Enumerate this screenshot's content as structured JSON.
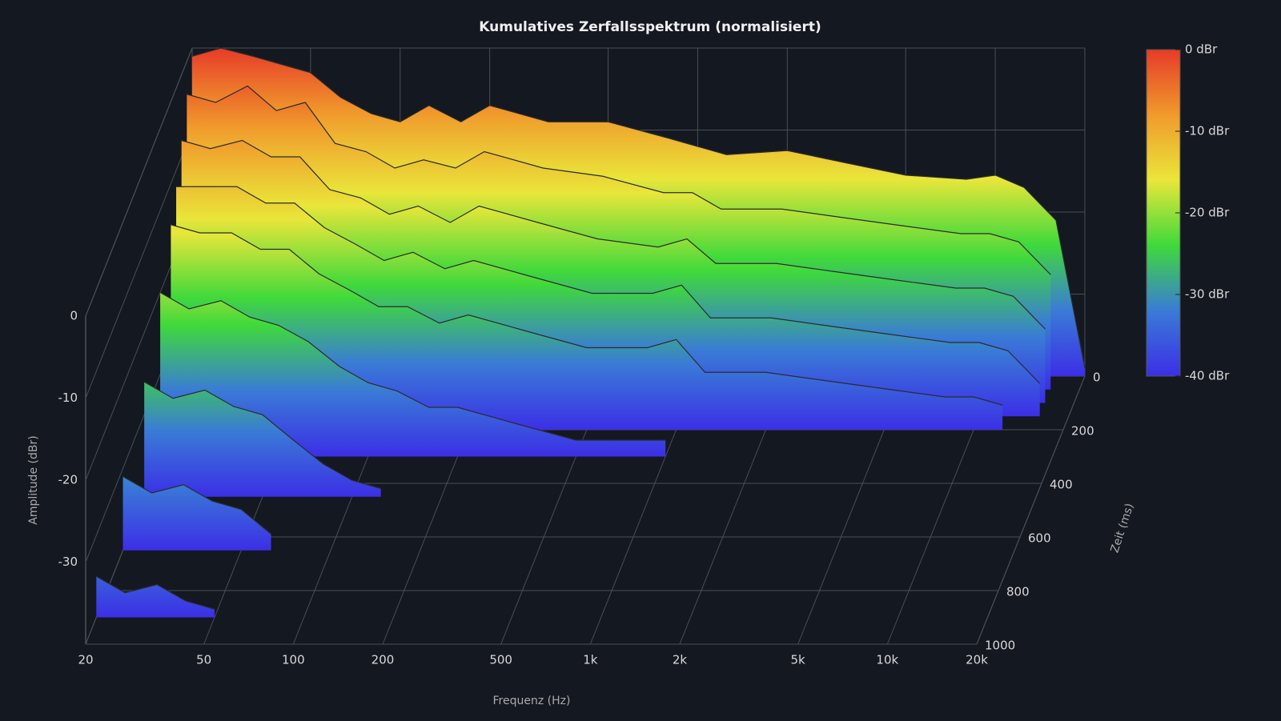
{
  "chart_data": {
    "type": "waterfall",
    "title": "Kumulatives Zerfallsspektrum (normalisiert)",
    "x_label": "Frequenz (Hz)",
    "y_label": "Amplitude (dBr)",
    "z_label": "Zeit (ms)",
    "log_x": true,
    "xlim": [
      20,
      20000
    ],
    "xticks": [
      20,
      50,
      100,
      200,
      500,
      {
        "value": 1000,
        "label": "1k"
      },
      {
        "value": 2000,
        "label": "2k"
      },
      {
        "value": 5000,
        "label": "5k"
      },
      {
        "value": 10000,
        "label": "10k"
      },
      {
        "value": 20000,
        "label": "20k"
      }
    ],
    "ylim": [
      -40,
      0
    ],
    "yticks": [
      0,
      -10,
      -20,
      -30
    ],
    "tlim": [
      0,
      1000
    ],
    "tticks": [
      0,
      200,
      400,
      600,
      800,
      1000
    ],
    "colormap": [
      "#e63b28",
      "#f09a2c",
      "#e9e63a",
      "#3fd93b",
      "#3a7bd6",
      "#3b2fe6"
    ],
    "colorbar_ticks": [
      {
        "value": 0,
        "label": "0 dBr"
      },
      {
        "value": -10,
        "label": "-10 dBr"
      },
      {
        "value": -20,
        "label": "-20 dBr"
      },
      {
        "value": -30,
        "label": "-30 dBr"
      },
      {
        "value": -40,
        "label": "-40 dBr"
      }
    ],
    "x": [
      20,
      25,
      32,
      40,
      50,
      63,
      80,
      100,
      125,
      160,
      200,
      315,
      500,
      800,
      1000,
      1250,
      2000,
      3150,
      5000,
      8000,
      10000,
      12500,
      16000,
      20000
    ],
    "times": [
      0,
      50,
      100,
      150,
      200,
      300,
      450,
      650,
      900
    ],
    "z": [
      [
        -1,
        0,
        -1,
        -2,
        -3,
        -6,
        -8,
        -9,
        -7,
        -9,
        -7,
        -9,
        -9,
        -11,
        -12,
        -13,
        -12.5,
        -14,
        -15.5,
        -16,
        -15.5,
        -17,
        -21,
        -39
      ],
      [
        -4,
        -5,
        -3,
        -6,
        -5,
        -10,
        -11,
        -13,
        -12,
        -13,
        -11,
        -13,
        -14,
        -16,
        -16,
        -18,
        -18,
        -19,
        -20,
        -21,
        -21,
        -22,
        -26,
        null
      ],
      [
        -8,
        -9,
        -8,
        -10,
        -10,
        -14,
        -15,
        -17,
        -16,
        -18,
        -16,
        -18,
        -20,
        -21,
        -20,
        -23,
        -23,
        -24,
        -25,
        -26,
        -26,
        -27,
        -31,
        null
      ],
      [
        -12,
        -12,
        -12,
        -14,
        -14,
        -17,
        -19,
        -21,
        -20,
        -22,
        -21,
        -23,
        -25,
        -25,
        -24,
        -28,
        -28,
        -29,
        -30,
        -31,
        -31,
        -32,
        -36,
        null
      ],
      [
        -15,
        -16,
        -16,
        -18,
        -18,
        -21,
        -23,
        -25,
        -25,
        -27,
        -26,
        -28,
        -30,
        -30,
        -29,
        -33,
        -33,
        -34,
        -35,
        -36,
        -36,
        -37,
        null,
        null
      ],
      [
        -20,
        -22,
        -21,
        -23,
        -24,
        -26,
        -29,
        -31,
        -32,
        -34,
        -34,
        -36,
        -38,
        -38,
        -38,
        null,
        null,
        null,
        null,
        null,
        null,
        null,
        null,
        null
      ],
      [
        -26,
        -28,
        -27,
        -29,
        -30,
        -33,
        -36,
        -38,
        -39,
        null,
        null,
        null,
        null,
        null,
        null,
        null,
        null,
        null,
        null,
        null,
        null,
        null,
        null,
        null
      ],
      [
        -31,
        -33,
        -32,
        -34,
        -35,
        -38,
        null,
        null,
        null,
        null,
        null,
        null,
        null,
        null,
        null,
        null,
        null,
        null,
        null,
        null,
        null,
        null,
        null,
        null
      ],
      [
        -35,
        -37,
        -36,
        -38,
        -39,
        null,
        null,
        null,
        null,
        null,
        null,
        null,
        null,
        null,
        null,
        null,
        null,
        null,
        null,
        null,
        null,
        null,
        null,
        null
      ]
    ]
  }
}
